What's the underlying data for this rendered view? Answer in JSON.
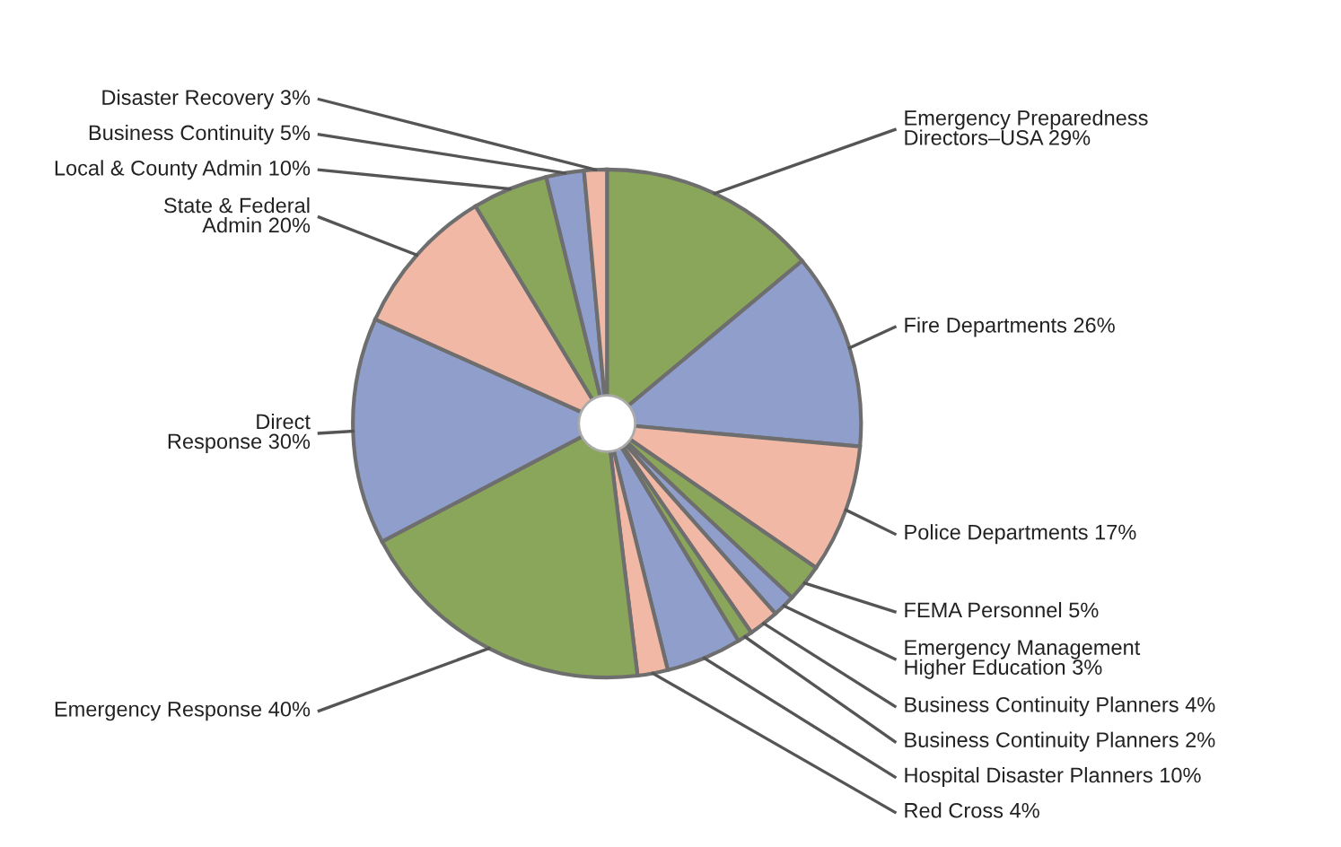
{
  "chart_data": {
    "type": "pie",
    "categories": [
      "Emergency Preparedness\nDirectors–USA",
      "Fire Departments",
      "Police Departments",
      "FEMA Personnel",
      "Emergency Management\nHigher Education",
      "Business Continuity Planners",
      "Business Continuity Planners",
      "Hospital Disaster Planners",
      "Red Cross",
      "Emergency Response",
      "Direct\nResponse",
      "State & Federal\nAdmin",
      "Local & County Admin",
      "Business Continuity",
      "Disaster Recovery"
    ],
    "values": [
      29,
      26,
      17,
      5,
      3,
      4,
      2,
      10,
      4,
      40,
      30,
      20,
      10,
      5,
      3
    ],
    "value_labels": [
      "29%",
      "26%",
      "17%",
      "5%",
      "3%",
      "4%",
      "2%",
      "10%",
      "4%",
      "40%",
      "30%",
      "20%",
      "10%",
      "5%",
      "3%"
    ],
    "colors": [
      "#8aa65a",
      "#8f9ecb",
      "#f1b8a5",
      "#8aa65a",
      "#8f9ecb",
      "#f1b8a5",
      "#8aa65a",
      "#8f9ecb",
      "#f1b8a5",
      "#8aa65a",
      "#8f9ecb",
      "#f1b8a5",
      "#8aa65a",
      "#8f9ecb",
      "#f1b8a5"
    ]
  }
}
